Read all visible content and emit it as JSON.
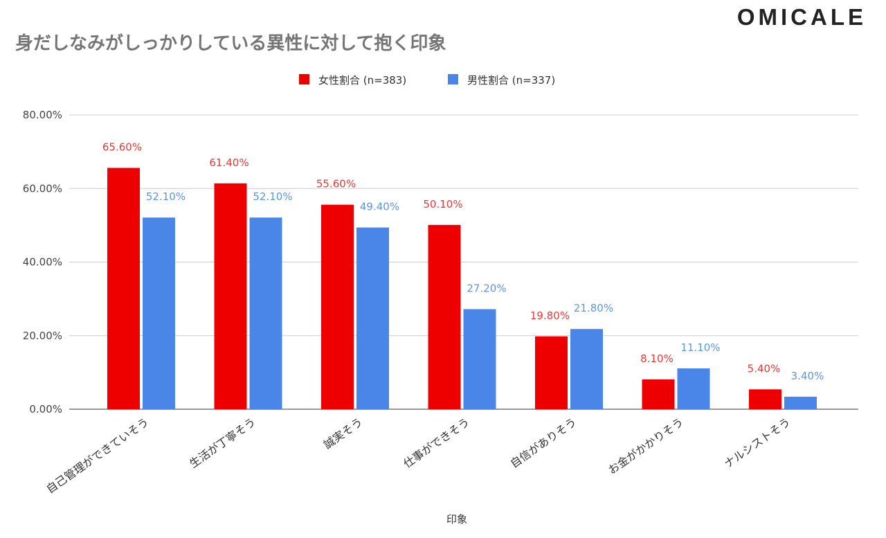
{
  "logo": "OMICALE",
  "chart_data": {
    "type": "bar",
    "title": "身だしなみがしっかりしている異性に対して抱く印象",
    "xlabel": "印象",
    "ylabel": "",
    "ylim": [
      0,
      80
    ],
    "yticks": [
      "0.00%",
      "20.00%",
      "40.00%",
      "60.00%",
      "80.00%"
    ],
    "grid": true,
    "legend_position": "top",
    "categories": [
      "自己管理ができていそう",
      "生活が丁寧そう",
      "誠実そう",
      "仕事ができそう",
      "自信がありそう",
      "お金がかかりそう",
      "ナルシストそう"
    ],
    "series": [
      {
        "name": "女性割合 (n=383)",
        "color": "#ee0000",
        "label_color": "#e53935",
        "values": [
          65.6,
          61.4,
          55.6,
          50.1,
          19.8,
          8.1,
          5.4
        ],
        "labels": [
          "65.60%",
          "61.40%",
          "55.60%",
          "50.10%",
          "19.80%",
          "8.10%",
          "5.40%"
        ]
      },
      {
        "name": "男性割合 (n=337)",
        "color": "#4a86e8",
        "label_color": "#5b95e6",
        "values": [
          52.1,
          52.1,
          49.4,
          27.2,
          21.8,
          11.1,
          3.4
        ],
        "labels": [
          "52.10%",
          "52.10%",
          "49.40%",
          "27.20%",
          "21.80%",
          "11.10%",
          "3.40%"
        ]
      }
    ]
  }
}
